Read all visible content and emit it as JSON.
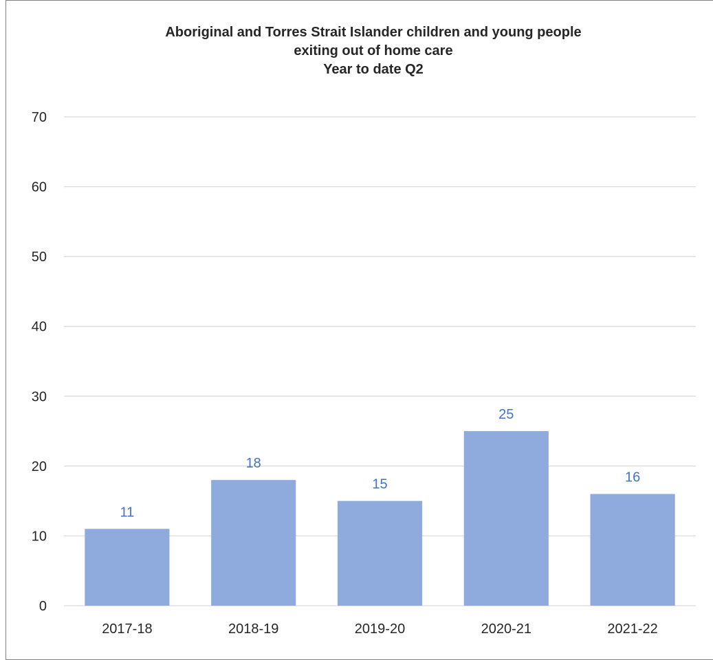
{
  "chart_data": {
    "type": "bar",
    "title_lines": [
      "Aboriginal and Torres Strait Islander children and young people",
      "exiting out of home care",
      "Year to date Q2"
    ],
    "categories": [
      "2017-18",
      "2018-19",
      "2019-20",
      "2020-21",
      "2021-22"
    ],
    "values": [
      11,
      18,
      15,
      25,
      16
    ],
    "data_labels": [
      "11",
      "18",
      "15",
      "25",
      "16"
    ],
    "y_ticks": [
      "0",
      "10",
      "20",
      "30",
      "40",
      "50",
      "60",
      "70"
    ],
    "ylim": [
      0,
      70
    ],
    "grid": true,
    "legend": "none",
    "xlabel": "",
    "ylabel": "",
    "colors": {
      "bar": "#8faadc",
      "data_label": "#4472c4",
      "gridline": "#d9d9d9",
      "text": "#262626",
      "border": "#7f7f7f"
    }
  }
}
